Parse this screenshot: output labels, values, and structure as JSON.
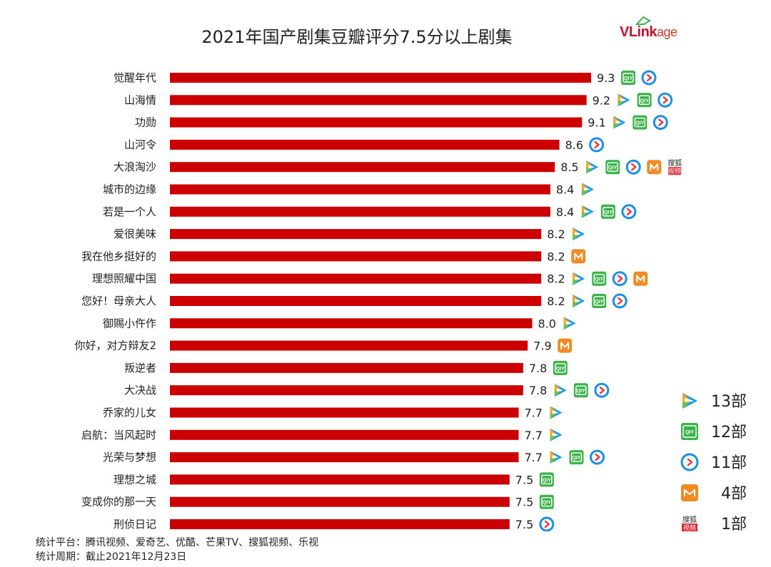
{
  "header": {
    "title": "2021年国产剧集豆瓣评分7.5分以上剧集",
    "brand_main": "VLink",
    "brand_tail": "age"
  },
  "footer": {
    "platforms": "统计平台：腾讯视频、爱奇艺、优酷、芒果TV、搜狐视频、乐视",
    "period": "统计周期：截止2021年12月23日"
  },
  "icons": {
    "tencent": {
      "name": "tencent-video-icon",
      "colors": [
        "#1a9be8",
        "#f5a623",
        "#7ac143"
      ]
    },
    "iqiyi": {
      "name": "iqiyi-icon",
      "color": "#3bb34a",
      "text": "QIY"
    },
    "youku": {
      "name": "youku-icon",
      "colors": [
        "#1a8fe8",
        "#e8344a"
      ]
    },
    "mango": {
      "name": "mango-tv-icon",
      "color": "#f08a24"
    },
    "sohu": {
      "name": "sohu-video-icon",
      "color": "#d9252b",
      "top": "搜狐",
      "bottom": "视频"
    }
  },
  "legend": [
    {
      "icon": "tencent",
      "label": "13部"
    },
    {
      "icon": "iqiyi",
      "label": "12部"
    },
    {
      "icon": "youku",
      "label": "11部"
    },
    {
      "icon": "mango",
      "label": "4部"
    },
    {
      "icon": "sohu",
      "label": "1部"
    }
  ],
  "chart_data": {
    "type": "bar",
    "orientation": "horizontal",
    "title": "2021年国产剧集豆瓣评分7.5分以上剧集",
    "bar_color": "#cc0000",
    "categories": [
      "觉醒年代",
      "山海情",
      "功勋",
      "山河令",
      "大浪淘沙",
      "城市的边缘",
      "若是一个人",
      "爱很美味",
      "我在他乡挺好的",
      "理想照耀中国",
      "您好！母亲大人",
      "御赐小仵作",
      "你好，对方辩友2",
      "叛逆者",
      "大决战",
      "乔家的儿女",
      "启航：当风起时",
      "光荣与梦想",
      "理想之城",
      "变成你的那一天",
      "刑侦日记"
    ],
    "values": [
      9.3,
      9.2,
      9.1,
      8.6,
      8.5,
      8.4,
      8.4,
      8.2,
      8.2,
      8.2,
      8.2,
      8.0,
      7.9,
      7.8,
      7.8,
      7.7,
      7.7,
      7.7,
      7.5,
      7.5,
      7.5
    ],
    "value_labels": [
      "9.3",
      "9.2",
      "9.1",
      "8.6",
      "8.5",
      "8.4",
      "8.4",
      "8.2",
      "8.2",
      "8.2",
      "8.2",
      "8.0",
      "7.9",
      "7.8",
      "7.8",
      "7.7",
      "7.7",
      "7.7",
      "7.5",
      "7.5",
      "7.5"
    ],
    "platforms": [
      [
        "iqiyi",
        "youku"
      ],
      [
        "tencent",
        "iqiyi",
        "youku"
      ],
      [
        "tencent",
        "iqiyi",
        "youku"
      ],
      [
        "youku"
      ],
      [
        "tencent",
        "iqiyi",
        "youku",
        "mango",
        "sohu"
      ],
      [
        "tencent"
      ],
      [
        "tencent",
        "iqiyi",
        "youku"
      ],
      [
        "tencent"
      ],
      [
        "mango"
      ],
      [
        "tencent",
        "iqiyi",
        "youku",
        "mango"
      ],
      [
        "tencent",
        "iqiyi",
        "youku"
      ],
      [
        "tencent"
      ],
      [
        "mango"
      ],
      [
        "iqiyi"
      ],
      [
        "tencent",
        "iqiyi",
        "youku"
      ],
      [
        "tencent"
      ],
      [
        "tencent"
      ],
      [
        "tencent",
        "iqiyi",
        "youku"
      ],
      [
        "iqiyi"
      ],
      [
        "iqiyi"
      ],
      [
        "youku"
      ]
    ],
    "xlim": [
      0,
      9.3
    ],
    "grid": false,
    "legend_position": "bottom-right"
  }
}
